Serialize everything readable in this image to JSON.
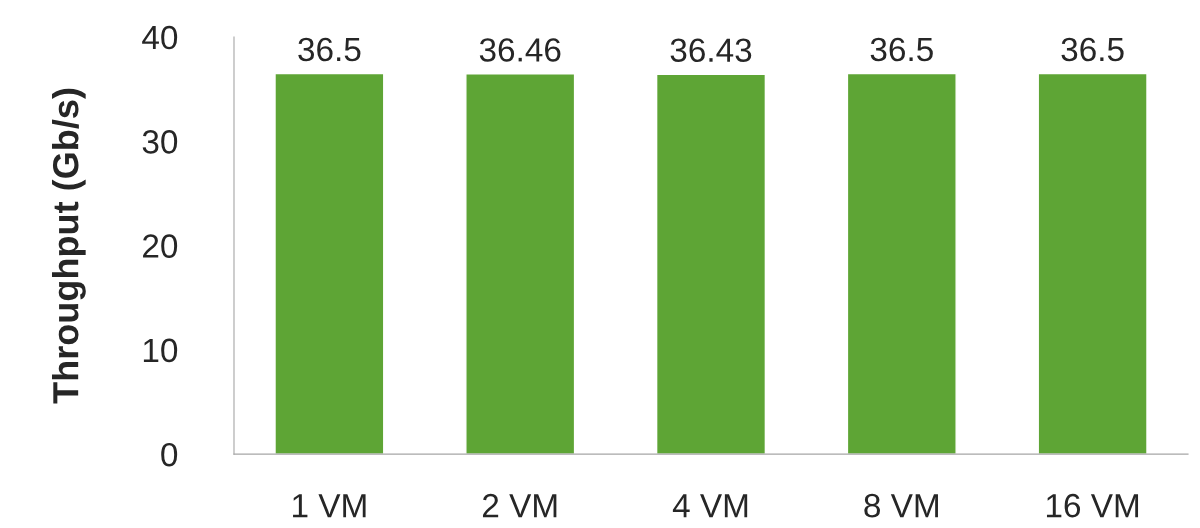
{
  "chart_data": {
    "type": "bar",
    "ylabel": "Throughput (Gb/s)",
    "categories": [
      "1 VM",
      "2 VM",
      "4 VM",
      "8 VM",
      "16 VM"
    ],
    "values": [
      36.5,
      36.46,
      36.43,
      36.5,
      36.5
    ],
    "color": "#5ea535",
    "ylim": [
      0,
      40
    ],
    "yticks": [
      0,
      10,
      20,
      30,
      40
    ],
    "grid": false,
    "data_labels": true
  }
}
